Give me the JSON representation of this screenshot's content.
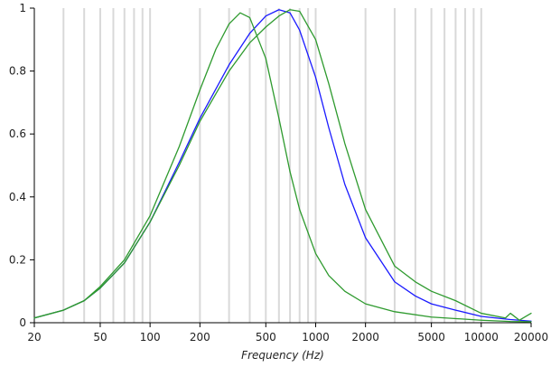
{
  "chart_data": {
    "type": "line",
    "title": "",
    "xlabel": "Frequency (Hz)",
    "ylabel": "",
    "xscale": "log",
    "xlim": [
      20,
      20000
    ],
    "ylim": [
      0,
      1
    ],
    "grid": "vertical",
    "legend": "none",
    "x_ticks": [
      20,
      50,
      100,
      200,
      500,
      1000,
      2000,
      5000,
      10000,
      20000
    ],
    "x_tick_labels": [
      "20",
      "50",
      "100",
      "200",
      "500",
      "1000",
      "2000",
      "5000",
      "10000",
      "20000"
    ],
    "y_ticks": [
      0,
      0.2,
      0.4,
      0.6,
      0.8,
      1
    ],
    "y_tick_labels": [
      "0",
      "0.2",
      "0.4",
      "0.6",
      "0.8",
      "1"
    ],
    "series": [
      {
        "color": "#1a1aff",
        "x": [
          20,
          30,
          40,
          50,
          70,
          100,
          150,
          200,
          300,
          400,
          500,
          600,
          700,
          800,
          1000,
          1200,
          1500,
          2000,
          3000,
          4000,
          5000,
          7000,
          10000,
          15000,
          20000
        ],
        "y": [
          0.015,
          0.04,
          0.07,
          0.11,
          0.19,
          0.32,
          0.51,
          0.65,
          0.82,
          0.92,
          0.975,
          0.995,
          0.985,
          0.93,
          0.78,
          0.62,
          0.44,
          0.27,
          0.13,
          0.085,
          0.06,
          0.04,
          0.02,
          0.01,
          0.005
        ]
      },
      {
        "color": "#2e9a2e",
        "x": [
          20,
          30,
          40,
          50,
          70,
          100,
          150,
          200,
          250,
          300,
          350,
          400,
          500,
          600,
          700,
          800,
          1000,
          1200,
          1500,
          2000,
          3000,
          5000,
          10000,
          15000,
          20000
        ],
        "y": [
          0.015,
          0.04,
          0.07,
          0.115,
          0.2,
          0.34,
          0.56,
          0.74,
          0.87,
          0.95,
          0.985,
          0.97,
          0.84,
          0.65,
          0.48,
          0.36,
          0.22,
          0.15,
          0.1,
          0.06,
          0.035,
          0.018,
          0.008,
          0.004,
          0.003
        ]
      },
      {
        "color": "#2e9a2e",
        "x": [
          20,
          30,
          40,
          50,
          70,
          100,
          150,
          200,
          300,
          400,
          500,
          600,
          700,
          800,
          1000,
          1200,
          1500,
          2000,
          3000,
          4000,
          5000,
          7000,
          10000,
          14000,
          15000,
          17000,
          20000
        ],
        "y": [
          0.015,
          0.04,
          0.07,
          0.11,
          0.19,
          0.32,
          0.5,
          0.64,
          0.8,
          0.89,
          0.94,
          0.975,
          0.995,
          0.99,
          0.9,
          0.76,
          0.57,
          0.36,
          0.18,
          0.13,
          0.1,
          0.07,
          0.03,
          0.015,
          0.03,
          0.008,
          0.03
        ]
      }
    ]
  }
}
